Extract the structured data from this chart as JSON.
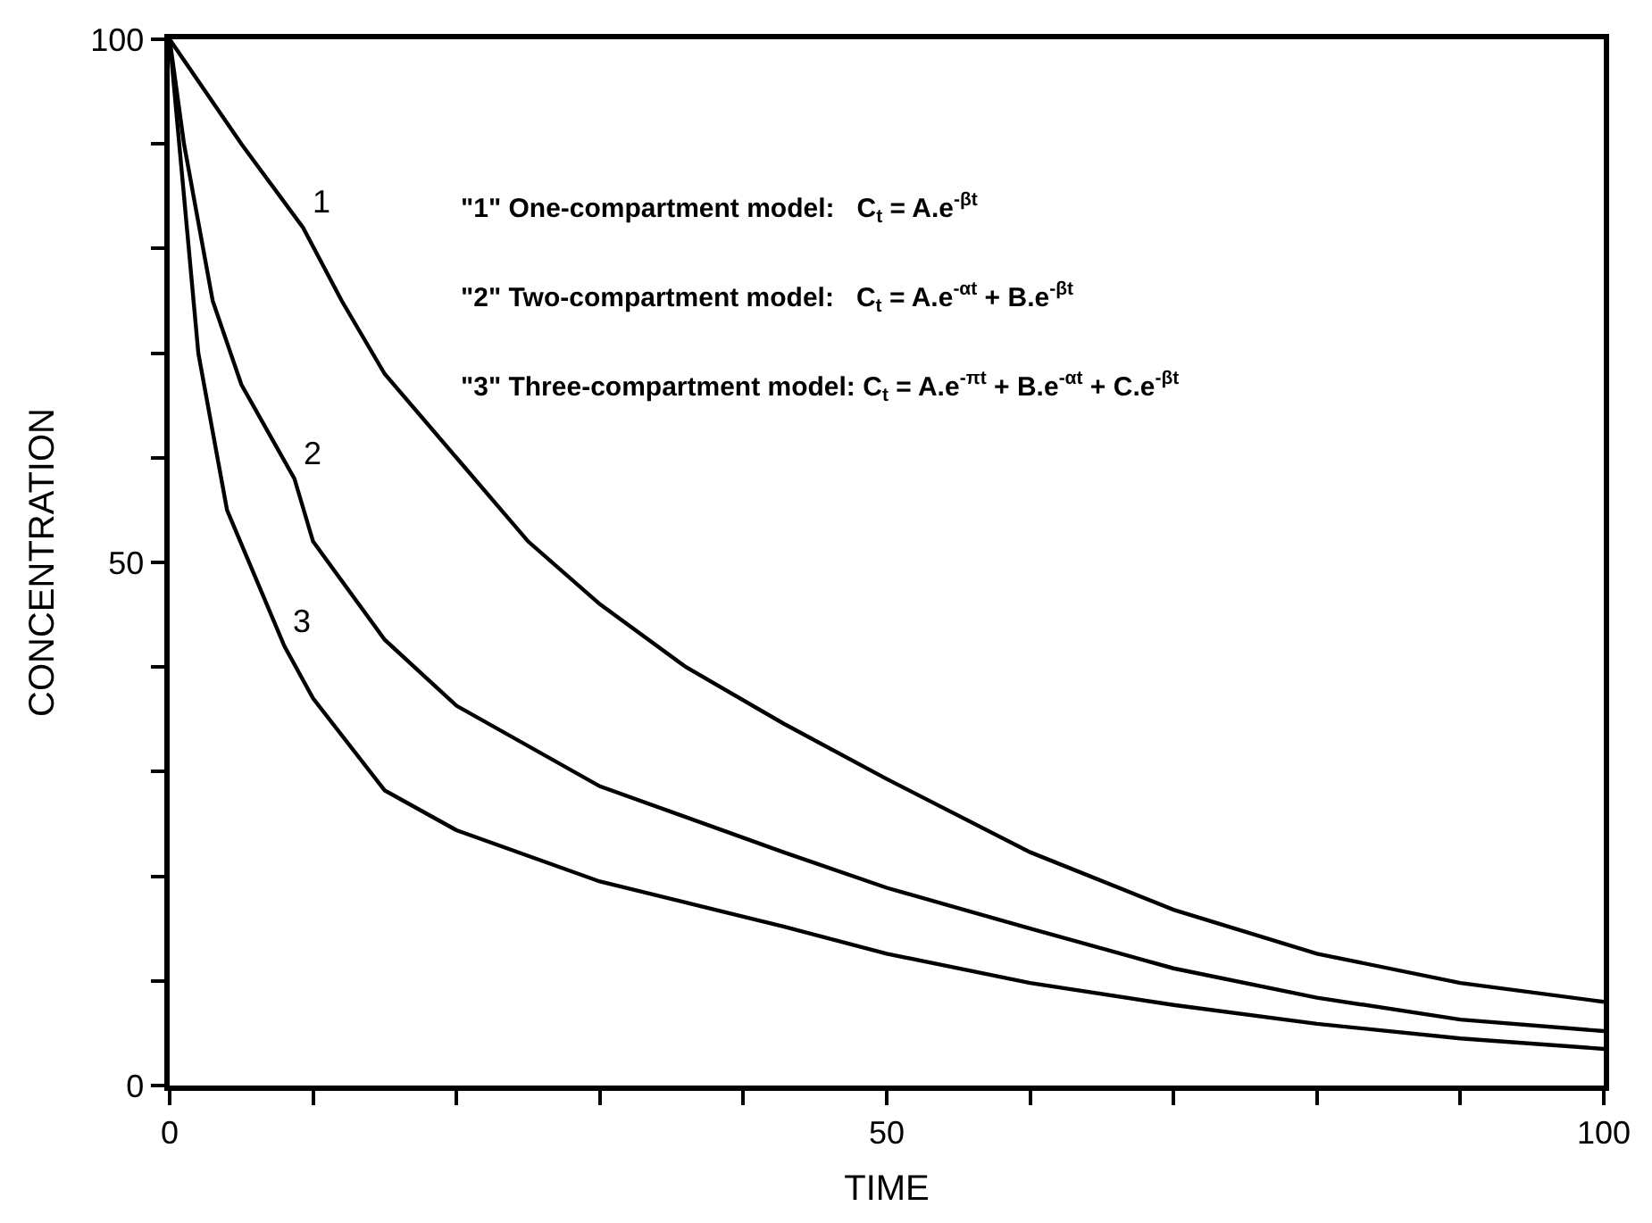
{
  "chart_data": {
    "type": "line",
    "xlabel": "TIME",
    "ylabel": "CONCENTRATION",
    "xlim": [
      0,
      100
    ],
    "ylim": [
      0,
      100
    ],
    "xticks": [
      0,
      {
        "value": 10,
        "label": null
      },
      {
        "value": 20,
        "label": null
      },
      {
        "value": 30,
        "label": null
      },
      {
        "value": 40,
        "label": null
      },
      50,
      {
        "value": 60,
        "label": null
      },
      {
        "value": 70,
        "label": null
      },
      {
        "value": 80,
        "label": null
      },
      {
        "value": 90,
        "label": null
      },
      100
    ],
    "yticks": [
      0,
      {
        "value": 10,
        "label": null
      },
      {
        "value": 20,
        "label": null
      },
      {
        "value": 30,
        "label": null
      },
      {
        "value": 40,
        "label": null
      },
      50,
      {
        "value": 60,
        "label": null
      },
      {
        "value": 70,
        "label": null
      },
      {
        "value": 80,
        "label": null
      },
      {
        "value": 90,
        "label": null
      },
      100
    ],
    "marker": "none",
    "line_style": "solid",
    "series": [
      {
        "color": "#000000",
        "x": [
          0,
          5,
          9.3,
          12,
          15,
          20,
          25,
          30,
          36,
          42.8,
          50,
          60,
          70,
          80,
          90,
          100
        ],
        "values": [
          100,
          90,
          82,
          75,
          68,
          60,
          52,
          46,
          40,
          34.6,
          29.3,
          22.3,
          16.8,
          12.6,
          9.8,
          8
        ]
      },
      {
        "color": "#000000",
        "x": [
          0,
          1,
          3,
          5,
          8.7,
          10,
          15,
          20,
          30,
          42.8,
          50,
          60,
          70,
          80,
          90,
          100
        ],
        "values": [
          100,
          90,
          75,
          67,
          58,
          52,
          42.6,
          36.3,
          28.6,
          22.3,
          18.9,
          15,
          11.2,
          8.4,
          6.3,
          5.2
        ]
      },
      {
        "color": "#000000",
        "x": [
          0,
          1,
          2,
          4,
          8,
          10,
          15,
          20,
          30,
          42.8,
          50,
          60,
          70,
          80,
          90,
          100
        ],
        "values": [
          100,
          85,
          70,
          55,
          42,
          37,
          28.2,
          24.4,
          19.5,
          15.2,
          12.6,
          9.8,
          7.7,
          5.9,
          4.5,
          3.5
        ]
      }
    ],
    "annotations": [
      {
        "text": "1",
        "x": 9.3,
        "y": 82
      },
      {
        "text": "2",
        "x": 8.7,
        "y": 58
      },
      {
        "text": "3",
        "x": 8,
        "y": 42
      },
      "\"1\" One-compartment model:   C$_{t}$ = A.e$^{-βt}$",
      "\"2\" Two-compartment model:   C$_{t}$ = A.e$^{-αt}$ + B.e$^{-βt}$",
      "\"3\" Three-compartment model: C$_{t}$ = A.e$^{-πt}$ + B.e$^{-αt}$ + C.e$^{-βt}$"
    ]
  }
}
